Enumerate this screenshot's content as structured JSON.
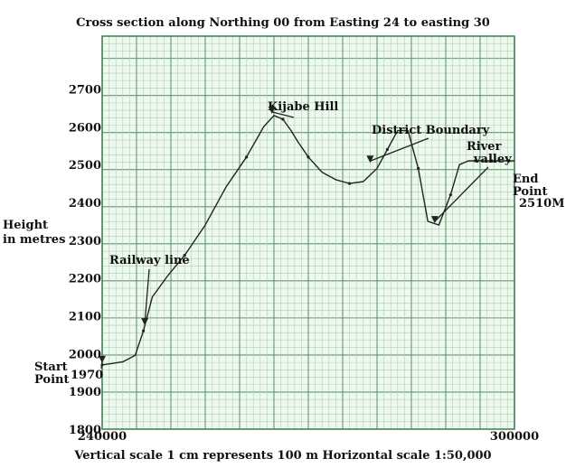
{
  "chart_data": {
    "type": "line",
    "title": "Cross section along Northing 00 from Easting 24 to easting 30",
    "ylabel": "Height in metres",
    "scale_note": "Vertical scale 1 cm represents 100 m  Horizontal scale 1:50,000",
    "xlim": [
      240000,
      300000
    ],
    "ylim": [
      1800,
      2800
    ],
    "y_ticks": [
      1800,
      1900,
      2000,
      2100,
      2200,
      2300,
      2400,
      2500,
      2600,
      2700
    ],
    "x_tick_labels": [
      {
        "x": 240000,
        "label": "240000"
      },
      {
        "x": 300000,
        "label": "300000"
      }
    ],
    "grid": true,
    "series": [
      {
        "x": [
          240000,
          243000,
          244800,
          246000,
          247300,
          249500,
          252000,
          255000,
          258000,
          261000,
          263500,
          265000,
          266300,
          267500,
          268500,
          270000,
          272000,
          274000,
          276000,
          278000,
          280000,
          281500,
          283000,
          284500,
          286000,
          287400,
          289000,
          290700,
          292000,
          293300,
          294300,
          295200,
          296000,
          296700,
          297500,
          298400,
          299200,
          299700,
          300000
        ],
        "values": [
          1970,
          1978,
          1995,
          2060,
          2150,
          2205,
          2260,
          2340,
          2440,
          2520,
          2600,
          2630,
          2620,
          2590,
          2560,
          2520,
          2480,
          2460,
          2450,
          2455,
          2490,
          2540,
          2590,
          2590,
          2490,
          2350,
          2340,
          2420,
          2500,
          2510,
          2510,
          2510,
          2510,
          2510,
          2510,
          2510,
          2510,
          2510,
          2510
        ]
      }
    ],
    "annotations": [
      {
        "text": "Kijabe Hill",
        "x": 264700,
        "y": 2630
      },
      {
        "text": "Railway line",
        "x": 246200,
        "y": 2070
      },
      {
        "text": "District Boundary",
        "x": 279000,
        "y": 2500
      },
      {
        "text": "River valley",
        "x": 288400,
        "y": 2340
      },
      {
        "text": "End Point",
        "x": 300000,
        "y": 2510
      },
      {
        "text": "2510M",
        "x": 300000,
        "y": 2510
      },
      {
        "text": "Start Point",
        "x": 240000,
        "y": 1970
      },
      {
        "text": "1970",
        "x": 240000,
        "y": 1970
      }
    ]
  }
}
